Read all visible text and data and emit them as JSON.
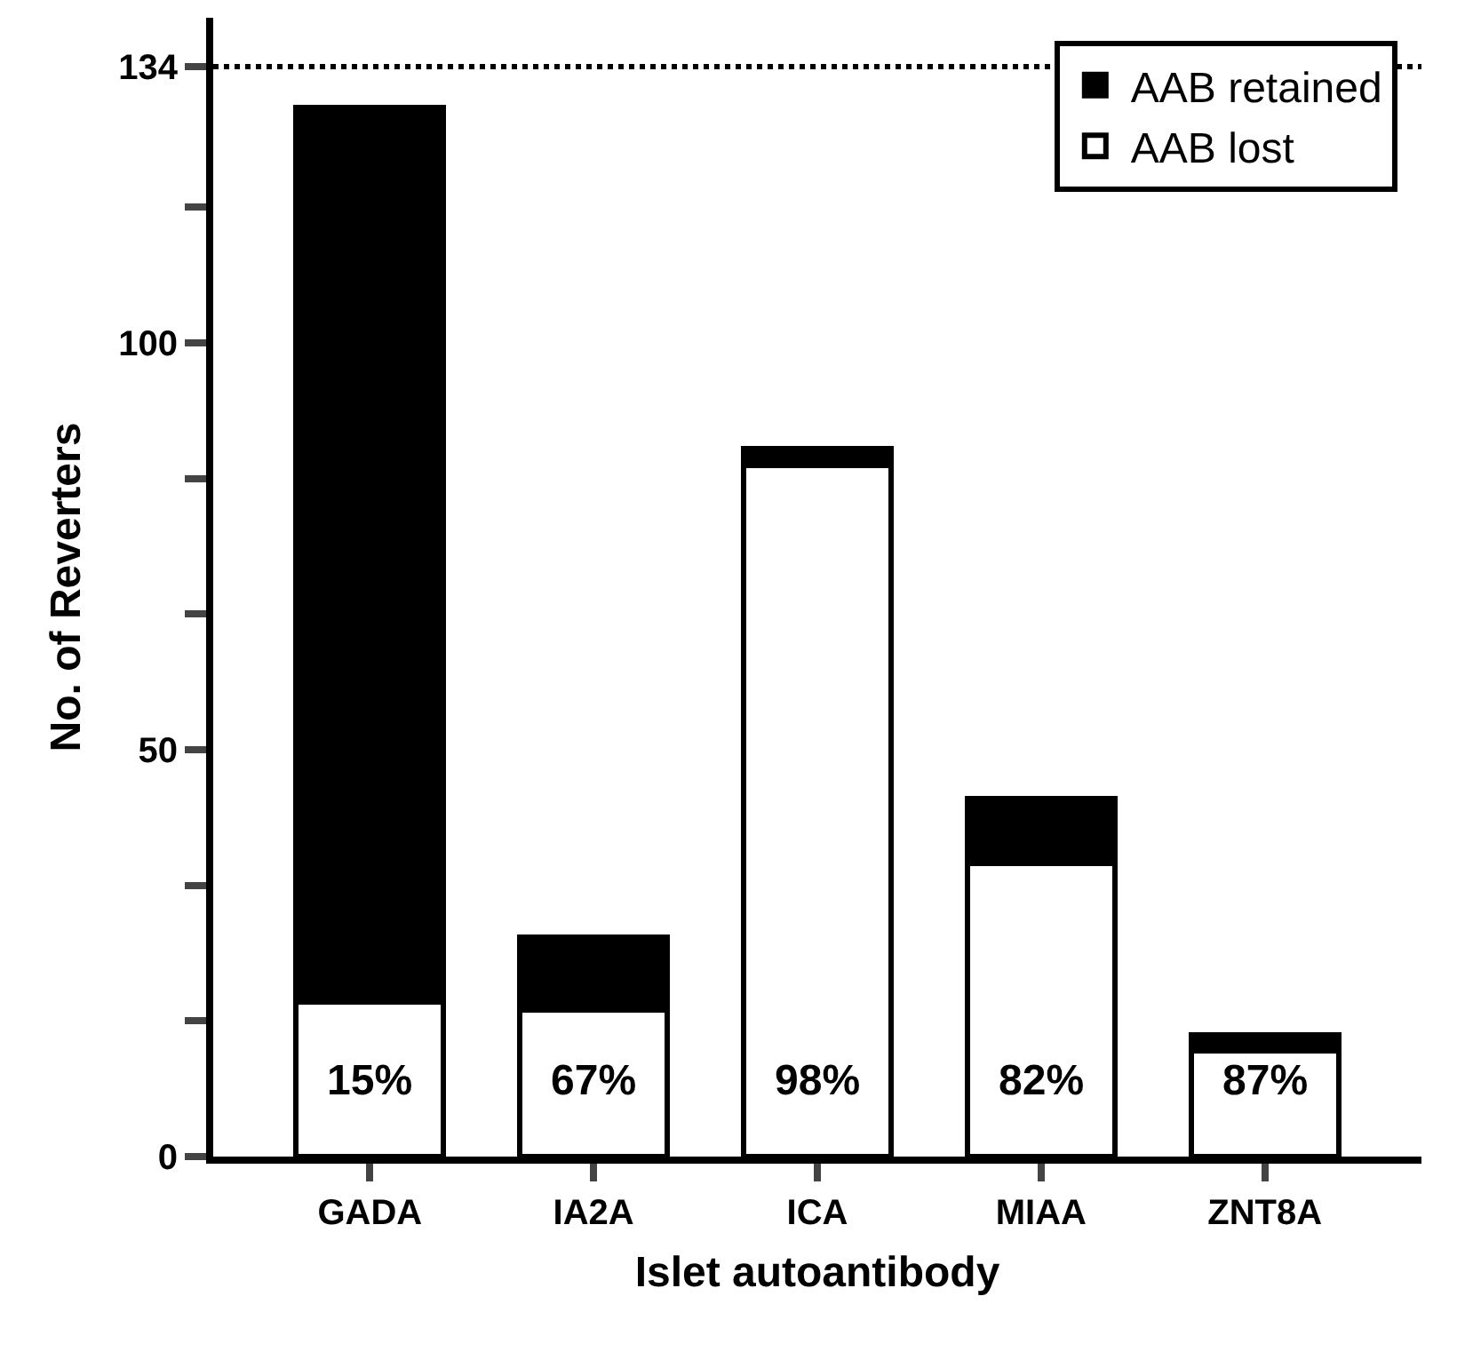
{
  "chart_data": {
    "type": "bar",
    "stacked": true,
    "xlabel": "Islet autoantibody",
    "ylabel": "No. of Reverters",
    "categories": [
      "GADA",
      "IA2A",
      "ICA",
      "MIAA",
      "ZNT8A"
    ],
    "series": [
      {
        "name": "AAB lost",
        "color": "#ffffff",
        "values": [
          19,
          18,
          85,
          36,
          13
        ]
      },
      {
        "name": "AAB retained",
        "color": "#000000",
        "values": [
          110,
          9,
          2,
          8,
          2
        ]
      }
    ],
    "ylim": [
      0,
      140
    ],
    "yticks": [
      0,
      {
        "value": 16.7,
        "label": null
      },
      {
        "value": 33.3,
        "label": null
      },
      50,
      {
        "value": 66.7,
        "label": null
      },
      {
        "value": 83.3,
        "label": null
      },
      100,
      {
        "value": 116.7,
        "label": null
      },
      134
    ],
    "ref_lines": [
      {
        "axis": "y",
        "value": 134,
        "line_style": "dotted",
        "color": "#000000"
      }
    ],
    "annotations": [
      "15%",
      "67%",
      "98%",
      "82%",
      "87%"
    ],
    "legend": "top right"
  }
}
